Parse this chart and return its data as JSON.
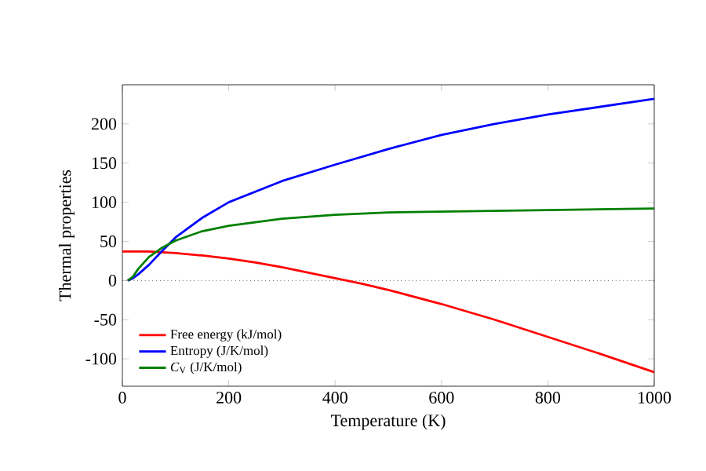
{
  "chart_data": {
    "type": "line",
    "xlabel": "Temperature (K)",
    "ylabel": "Thermal properties",
    "xlim": [
      0,
      1000
    ],
    "ylim": [
      -135,
      250
    ],
    "xticks": [
      0,
      200,
      400,
      600,
      800,
      1000
    ],
    "yticks": [
      -100,
      -50,
      0,
      50,
      100,
      150,
      200
    ],
    "legend": "bottom left",
    "grid": false,
    "ref_lines": [
      {
        "axis": "y",
        "value": 0,
        "color": "#000000",
        "line_style": "dotted"
      }
    ],
    "series": [
      {
        "name": "Free energy (kJ/mol)",
        "color": "#ff0000",
        "x": [
          0,
          50,
          100,
          150,
          200,
          250,
          300,
          350,
          400,
          450,
          500,
          600,
          700,
          800,
          900,
          1000
        ],
        "values": [
          37,
          37,
          35,
          32,
          28,
          23,
          17,
          10,
          3,
          -4,
          -12,
          -30,
          -50,
          -72,
          -94,
          -117
        ]
      },
      {
        "name": "Entropy (J/K/mol)",
        "color": "#0000ff",
        "x": [
          10,
          20,
          30,
          50,
          75,
          100,
          150,
          200,
          300,
          400,
          500,
          600,
          700,
          800,
          900,
          1000
        ],
        "values": [
          0,
          3,
          8,
          20,
          38,
          55,
          80,
          100,
          127,
          148,
          168,
          186,
          200,
          212,
          222,
          232
        ]
      },
      {
        "name": "*C*$_{V}$ (J/K/mol)",
        "color": "#008000",
        "x": [
          10,
          20,
          30,
          50,
          75,
          100,
          150,
          200,
          300,
          400,
          500,
          600,
          800,
          1000
        ],
        "values": [
          0,
          5,
          15,
          30,
          42,
          51,
          63,
          70,
          79,
          84,
          87,
          88,
          90,
          92
        ]
      }
    ]
  }
}
